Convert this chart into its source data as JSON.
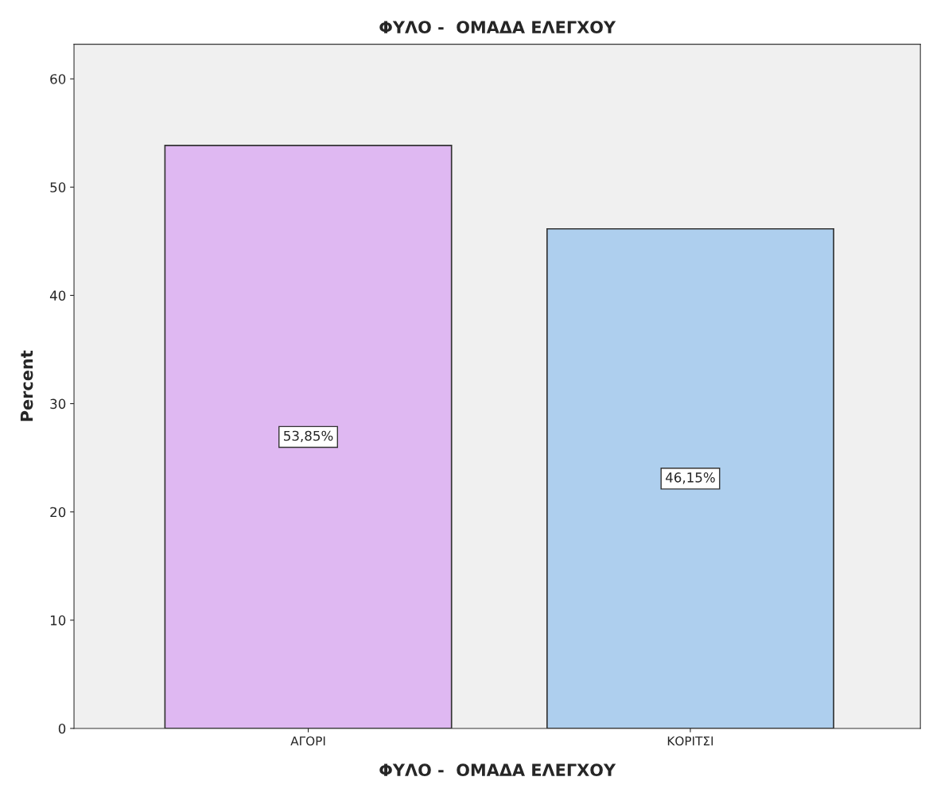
{
  "chart_data": {
    "type": "bar",
    "title": "ΦΥΛΟ -  ΟΜΑΔΑ ΕΛΕΓΧΟΥ",
    "xlabel": "ΦΥΛΟ -  ΟΜΑΔΑ ΕΛΕΓΧΟΥ",
    "ylabel": "Percent",
    "categories": [
      "ΑΓΟΡΙ",
      "ΚΟΡΙΤΣΙ"
    ],
    "values": [
      53.85,
      46.15
    ],
    "colors": [
      "#dfb8f2",
      "#aecfee"
    ],
    "value_labels": [
      "53,85%",
      "46,15%"
    ],
    "ylim": [
      0,
      63.2
    ],
    "yticks": [
      0,
      10,
      20,
      30,
      40,
      50,
      60
    ],
    "grid": false,
    "legend": false
  }
}
